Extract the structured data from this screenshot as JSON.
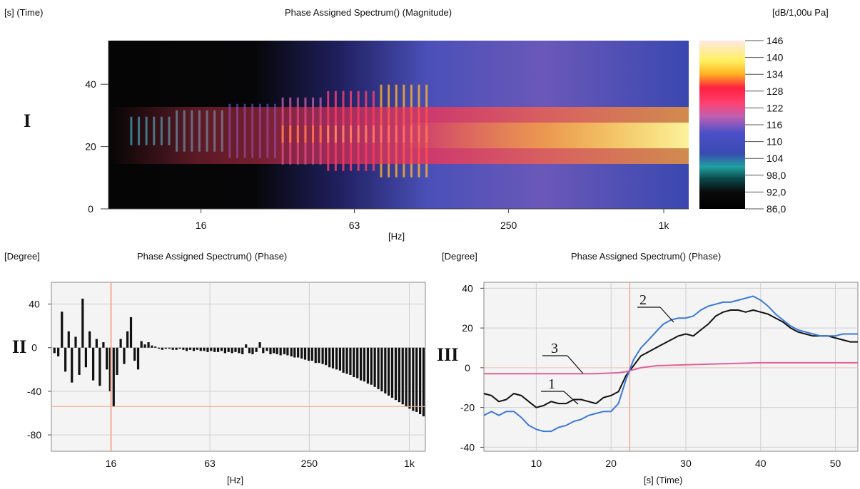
{
  "spectrogram": {
    "title": "Phase Assigned Spectrum() (Magnitude)",
    "roman": "I",
    "y_axis_label": "[s] (Time)",
    "x_axis_label": "[Hz]",
    "colorbar_unit": "[dB/1,00u Pa]",
    "colors": {
      "background": "#050505",
      "bar_high": "#fff7a0"
    }
  },
  "phase_freq": {
    "title": "Phase Assigned Spectrum() (Phase)",
    "roman": "II",
    "y_axis_label": "[Degree]",
    "x_axis_label": "[Hz]",
    "colors": {
      "bars": "#111111",
      "cursor": "#f4a98c",
      "grid": "#cfcfcf"
    }
  },
  "phase_time": {
    "title": "Phase Assigned Spectrum() (Phase)",
    "roman": "III",
    "y_axis_label": "[Degree]",
    "x_axis_label": "[s] (Time)",
    "annotations": [
      "1",
      "2",
      "3"
    ],
    "colors": {
      "curve1": "#111111",
      "curve2": "#3a78d8",
      "curve3": "#e0609a",
      "cursor": "#f4a98c"
    }
  },
  "chart_data": [
    {
      "type": "heatmap",
      "title": "Phase Assigned Spectrum() (Magnitude)",
      "xlabel": "[Hz]",
      "ylabel": "[s] (Time)",
      "x_scale": "log",
      "x_ticks": [
        "16",
        "63",
        "250",
        "1k"
      ],
      "y_ticks": [
        "0",
        "20",
        "40"
      ],
      "ylim": [
        0,
        54
      ],
      "colorbar": {
        "label": "[dB/1,00u Pa]",
        "ticks": [
          "146",
          "140",
          "134",
          "128",
          "122",
          "116",
          "110",
          "104",
          "98,0",
          "92,0",
          "86,0"
        ],
        "range": [
          86,
          146
        ]
      }
    },
    {
      "type": "bar",
      "title": "Phase Assigned Spectrum() (Phase)",
      "xlabel": "[Hz]",
      "ylabel": "[Degree]",
      "x_scale": "log",
      "x_ticks": [
        "16",
        "63",
        "250",
        "1k"
      ],
      "y_ticks": [
        "40",
        "0",
        "-40",
        "-80"
      ],
      "ylim": [
        -95,
        60
      ],
      "xlim": [
        7,
        1250
      ],
      "grid": true,
      "cursor": {
        "x": 16,
        "y": -54
      },
      "x": [
        7.3,
        7.7,
        8.1,
        8.5,
        8.9,
        9.3,
        9.8,
        10.3,
        10.8,
        11.3,
        11.9,
        12.5,
        13.1,
        13.7,
        14.4,
        15.1,
        15.8,
        16.6,
        17.4,
        18.3,
        19.2,
        20.1,
        21.1,
        22.2,
        23.3,
        24.4,
        25.6,
        26.9,
        28.2,
        29.6,
        31.1,
        32.6,
        34.2,
        35.9,
        37.7,
        39.6,
        41.5,
        43.6,
        45.7,
        48.0,
        50.4,
        52.9,
        55.5,
        58.2,
        61.1,
        64.1,
        67.3,
        70.6,
        74.1,
        77.8,
        81.6,
        85.7,
        89.9,
        94.4,
        99.0,
        104,
        109,
        114,
        120,
        126,
        132,
        139,
        146,
        153,
        160,
        168,
        177,
        185,
        195,
        204,
        214,
        225,
        236,
        248,
        260,
        273,
        286,
        301,
        315,
        331,
        347,
        365,
        383,
        401,
        421,
        442,
        464,
        487,
        511,
        536,
        563,
        591,
        620,
        651,
        683,
        717,
        752,
        789,
        829,
        870,
        913,
        958,
        1005,
        1055,
        1107,
        1162,
        1219
      ],
      "values": [
        -5,
        -8,
        33,
        -22,
        15,
        -32,
        10,
        -25,
        45,
        -18,
        15,
        -30,
        8,
        -35,
        5,
        -20,
        -40,
        -54,
        -25,
        8,
        -15,
        15,
        28,
        -12,
        -20,
        6,
        3,
        5,
        2,
        1,
        -1,
        -2,
        -1,
        -1,
        -2,
        -2,
        -1,
        -2,
        -3,
        -2,
        -3,
        -2,
        -3,
        -3,
        -4,
        -3,
        -4,
        -4,
        -3,
        -5,
        -4,
        -5,
        -4,
        -5,
        -6,
        3,
        -5,
        -6,
        -4,
        5,
        -5,
        -3,
        -6,
        -5,
        -6,
        -7,
        -6,
        -7,
        -8,
        -9,
        -9,
        -10,
        -11,
        -12,
        -12,
        -14,
        -14,
        -15,
        -16,
        -18,
        -19,
        -20,
        -21,
        -23,
        -24,
        -25,
        -27,
        -28,
        -30,
        -31,
        -33,
        -34,
        -36,
        -38,
        -40,
        -42,
        -44,
        -46,
        -48,
        -50,
        -52,
        -54,
        -56,
        -58,
        -59,
        -61,
        -63
      ]
    },
    {
      "type": "line",
      "title": "Phase Assigned Spectrum() (Phase)",
      "xlabel": "[s] (Time)",
      "ylabel": "[Degree]",
      "x_ticks": [
        "10",
        "20",
        "30",
        "40",
        "50"
      ],
      "y_ticks": [
        "40",
        "20",
        "0",
        "-20",
        "-40"
      ],
      "xlim": [
        3,
        53
      ],
      "ylim": [
        -42,
        43
      ],
      "grid": true,
      "cursor_x": 22.5,
      "series": [
        {
          "name": "1",
          "x": [
            3,
            4,
            5,
            6,
            7,
            8,
            9,
            10,
            11,
            12,
            13,
            14,
            15,
            16,
            17,
            18,
            19,
            20,
            21,
            22,
            23,
            24,
            25,
            26,
            27,
            28,
            29,
            30,
            31,
            32,
            33,
            34,
            35,
            36,
            37,
            38,
            39,
            40,
            41,
            42,
            43,
            44,
            45,
            46,
            47,
            48,
            49,
            50,
            51,
            52,
            53
          ],
          "values": [
            -13,
            -14,
            -17,
            -16,
            -13,
            -14,
            -17,
            -20,
            -19,
            -17,
            -18,
            -18,
            -16,
            -16,
            -17,
            -18,
            -15,
            -14,
            -12,
            -4,
            1,
            6,
            8,
            10,
            12,
            14,
            16,
            17,
            16,
            19,
            22,
            26,
            28,
            29,
            29,
            28,
            29,
            28,
            27,
            25,
            23,
            20,
            18,
            17,
            16,
            16,
            16,
            15,
            14,
            13,
            13
          ]
        },
        {
          "name": "2",
          "x": [
            3,
            4,
            5,
            6,
            7,
            8,
            9,
            10,
            11,
            12,
            13,
            14,
            15,
            16,
            17,
            18,
            19,
            20,
            21,
            22,
            23,
            24,
            25,
            26,
            27,
            28,
            29,
            30,
            31,
            32,
            33,
            34,
            35,
            36,
            37,
            38,
            39,
            40,
            41,
            42,
            43,
            44,
            45,
            46,
            47,
            48,
            49,
            50,
            51,
            52,
            53
          ],
          "values": [
            -24,
            -22,
            -24,
            -22,
            -22,
            -25,
            -29,
            -31,
            -32,
            -32,
            -30,
            -29,
            -27,
            -26,
            -24,
            -23,
            -22,
            -22,
            -18,
            -6,
            4,
            10,
            14,
            18,
            22,
            24,
            25,
            25,
            26,
            29,
            31,
            32,
            33,
            33,
            34,
            35,
            36,
            34,
            31,
            27,
            24,
            21,
            19,
            18,
            17,
            16,
            16,
            16,
            17,
            17,
            17
          ]
        },
        {
          "name": "3",
          "x": [
            3,
            8,
            13,
            18,
            21,
            22,
            23,
            24,
            26,
            30,
            35,
            40,
            45,
            50,
            53
          ],
          "values": [
            -3,
            -3,
            -3,
            -3,
            -2.5,
            -2,
            -1,
            0,
            1,
            1.5,
            2,
            2.5,
            2.5,
            2.5,
            2.5
          ]
        }
      ]
    }
  ]
}
